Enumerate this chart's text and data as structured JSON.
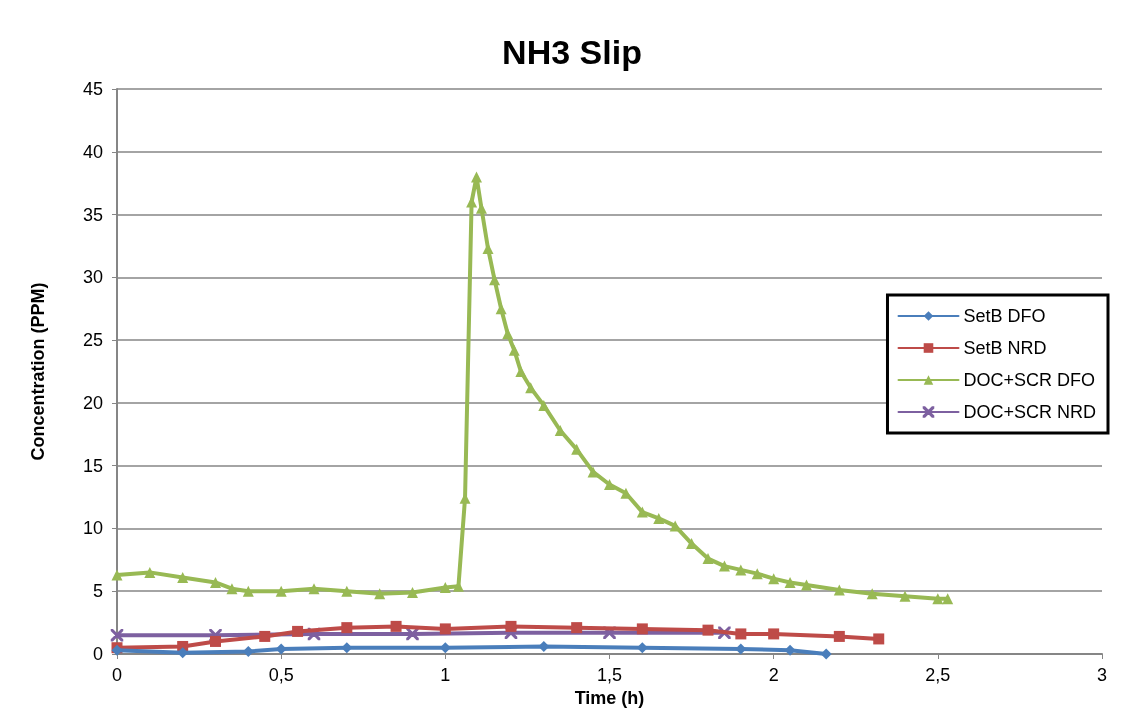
{
  "chart_data": {
    "type": "line",
    "title": "NH3 Slip",
    "xlabel": "Time (h)",
    "ylabel": "Concentration (PPM)",
    "xlim": [
      0,
      3
    ],
    "xticks": [
      0,
      {
        "value": 0.5,
        "label": "0,5"
      },
      1,
      {
        "value": 1.5,
        "label": "1,5"
      },
      2,
      {
        "value": 2.5,
        "label": "2,5"
      },
      3
    ],
    "ylim": [
      0,
      45
    ],
    "yticks": [
      0,
      5,
      10,
      15,
      20,
      25,
      30,
      35,
      40,
      45
    ],
    "grid": "y",
    "legend": "right",
    "series": [
      {
        "name": "SetB DFO",
        "color": "#4a7ebb",
        "marker": "diamond",
        "x": [
          0,
          0.2,
          0.4,
          0.5,
          0.7,
          1.0,
          1.3,
          1.6,
          1.9,
          2.05,
          2.16
        ],
        "values": [
          0.3,
          0.1,
          0.2,
          0.4,
          0.5,
          0.5,
          0.6,
          0.5,
          0.4,
          0.3,
          0.0
        ]
      },
      {
        "name": "SetB NRD",
        "color": "#be4b48",
        "marker": "square",
        "x": [
          0,
          0.2,
          0.3,
          0.45,
          0.55,
          0.7,
          0.85,
          1.0,
          1.2,
          1.4,
          1.6,
          1.8,
          1.9,
          2.0,
          2.2,
          2.32
        ],
        "values": [
          0.5,
          0.6,
          1.0,
          1.4,
          1.8,
          2.1,
          2.2,
          2.0,
          2.2,
          2.1,
          2.0,
          1.9,
          1.6,
          1.6,
          1.4,
          1.2
        ]
      },
      {
        "name": "DOC+SCR DFO",
        "color": "#98b954",
        "marker": "triangle",
        "x": [
          0,
          0.1,
          0.2,
          0.3,
          0.35,
          0.4,
          0.5,
          0.6,
          0.7,
          0.8,
          0.9,
          1.0,
          1.04,
          1.06,
          1.08,
          1.095,
          1.11,
          1.13,
          1.15,
          1.17,
          1.19,
          1.21,
          1.23,
          1.26,
          1.3,
          1.35,
          1.4,
          1.45,
          1.5,
          1.55,
          1.6,
          1.65,
          1.7,
          1.75,
          1.8,
          1.85,
          1.9,
          1.95,
          2.0,
          2.05,
          2.1,
          2.2,
          2.3,
          2.4,
          2.5,
          2.53
        ],
        "values": [
          6.3,
          6.5,
          6.1,
          5.7,
          5.2,
          5.0,
          5.0,
          5.2,
          5.0,
          4.8,
          4.9,
          5.3,
          5.4,
          12.4,
          36.0,
          38.0,
          35.5,
          32.3,
          29.8,
          27.5,
          25.5,
          24.2,
          22.5,
          21.2,
          19.8,
          17.8,
          16.3,
          14.5,
          13.5,
          12.8,
          11.3,
          10.8,
          10.2,
          8.8,
          7.6,
          7.0,
          6.7,
          6.4,
          6.0,
          5.7,
          5.5,
          5.1,
          4.8,
          4.6,
          4.4,
          4.4
        ]
      },
      {
        "name": "DOC+SCR NRD",
        "color": "#7d60a0",
        "marker": "cross",
        "x": [
          0,
          0.3,
          0.6,
          0.9,
          1.2,
          1.5,
          1.85
        ],
        "values": [
          1.5,
          1.5,
          1.6,
          1.6,
          1.7,
          1.7,
          1.7
        ]
      }
    ]
  }
}
